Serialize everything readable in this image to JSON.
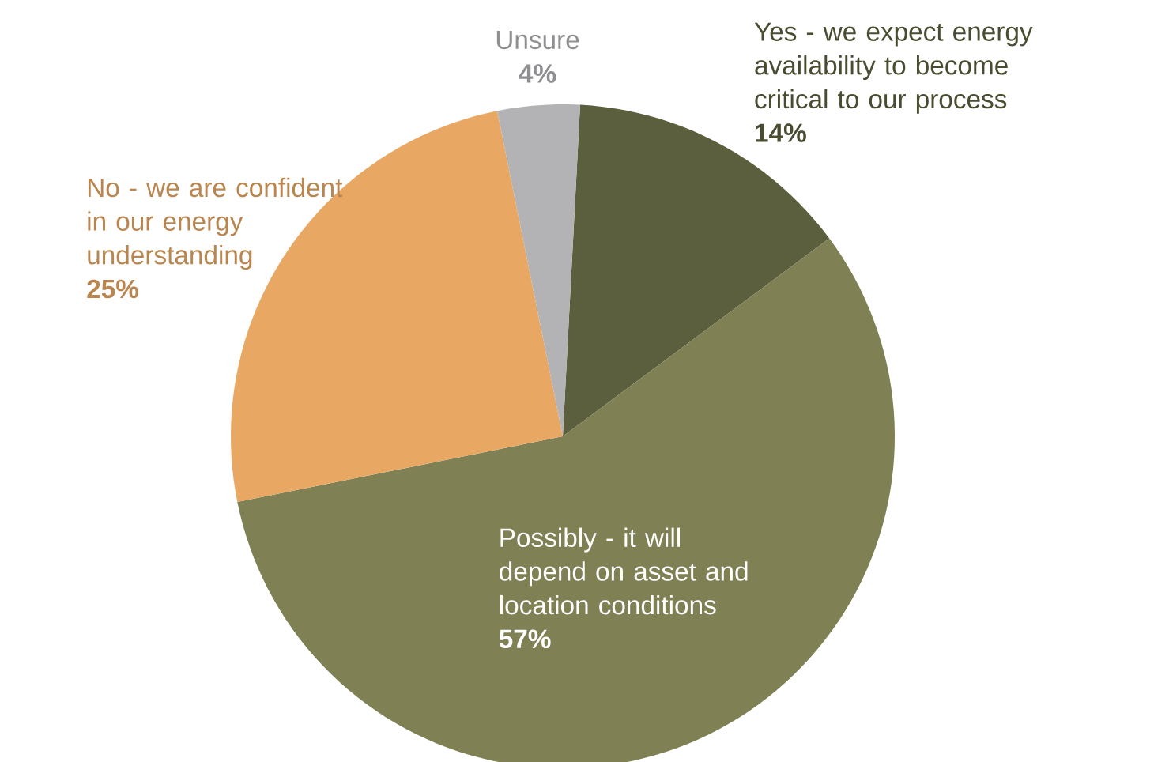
{
  "chart_data": {
    "type": "pie",
    "categories": [
      "Yes - we expect energy availability to become critical to our process",
      "Possibly - it will depend on asset and location conditions",
      "No - we are confident in our energy understanding",
      "Unsure"
    ],
    "values": [
      14,
      57,
      25,
      4
    ],
    "value_labels": [
      "14%",
      "57%",
      "25%",
      "4%"
    ],
    "colors": [
      "#5c5f3e",
      "#7f8154",
      "#e8a864",
      "#b3b3b6"
    ]
  }
}
